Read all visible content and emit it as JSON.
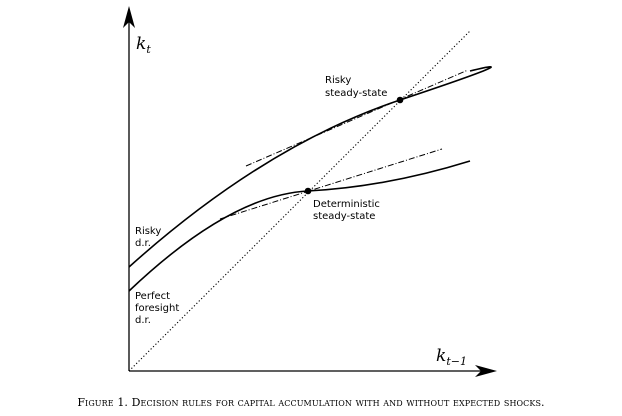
{
  "axes": {
    "y_label": {
      "base": "k",
      "sub": "t"
    },
    "x_label": {
      "base": "k",
      "sub": "t−1"
    }
  },
  "curves": {
    "risky_dr": {
      "label_lines": [
        "Risky",
        "d.r."
      ]
    },
    "perfect_foresight_dr": {
      "label_lines": [
        "Perfect",
        "foresight",
        "d.r."
      ]
    },
    "forty_five_degree_line": {
      "style": "dotted"
    }
  },
  "points": {
    "risky_ss": {
      "label_lines": [
        "Risky",
        "steady-state"
      ]
    },
    "deterministic_ss": {
      "label_lines": [
        "Deterministic",
        "steady-state"
      ]
    }
  },
  "caption": "Figure 1. Decision rules for capital accumulation with and without expected shocks."
}
